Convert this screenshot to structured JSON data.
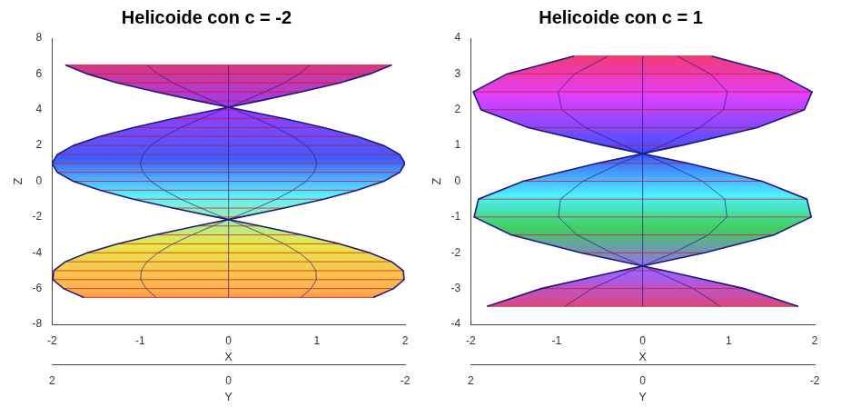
{
  "chart_data": [
    {
      "type": "surface",
      "title": "Helicoide con c = -2",
      "x_label": "X",
      "y_label": "Y",
      "z_label": "Z",
      "xlim": [
        -2,
        2
      ],
      "xticks": [
        -2,
        -1,
        0,
        1,
        2
      ],
      "ylim": [
        -2,
        2
      ],
      "yticks": [
        -2,
        0,
        2
      ],
      "zlim": [
        -8,
        8
      ],
      "zticks": [
        -8,
        -6,
        -4,
        -2,
        0,
        2,
        4,
        6,
        8
      ],
      "grid": false,
      "series": [
        {
          "color": "#1a1a80",
          "z": [
            -6.5,
            -6,
            -5.5,
            -5,
            -4.5,
            -4,
            -3.5,
            -3,
            -2.5,
            -2,
            -1.5,
            -1,
            -0.5,
            0,
            0.5,
            1,
            1.5,
            2,
            2.5,
            3,
            3.5,
            4,
            4.5,
            5,
            5.5,
            6,
            6.5
          ],
          "x": [
            -1.64,
            -1.87,
            -1.99,
            -1.98,
            -1.85,
            -1.6,
            -1.26,
            -0.83,
            -0.36,
            0.14,
            0.63,
            1.08,
            1.46,
            1.76,
            1.94,
            2,
            1.94,
            1.76,
            1.46,
            1.08,
            0.63,
            0.14,
            -0.36,
            -0.83,
            -1.26,
            -1.6,
            -1.85
          ]
        },
        {
          "color": "#1a1a80",
          "z": [
            -6.5,
            -6,
            -5.5,
            -5,
            -4.5,
            -4,
            -3.5,
            -3,
            -2.5,
            -2,
            -1.5,
            -1,
            -0.5,
            0,
            0.5,
            1,
            1.5,
            2,
            2.5,
            3,
            3.5,
            4,
            4.5,
            5,
            5.5,
            6,
            6.5
          ],
          "x": [
            1.64,
            1.87,
            1.99,
            1.98,
            1.85,
            1.6,
            1.26,
            0.83,
            0.36,
            -0.14,
            -0.63,
            -1.08,
            -1.46,
            -1.76,
            -1.94,
            -2,
            -1.94,
            -1.76,
            -1.46,
            -1.08,
            -0.63,
            -0.14,
            0.36,
            0.83,
            1.26,
            1.6,
            1.85
          ]
        }
      ]
    },
    {
      "type": "surface",
      "title": "Helicoide con c = 1",
      "x_label": "X",
      "y_label": "Y",
      "z_label": "Z",
      "xlim": [
        -2,
        2
      ],
      "xticks": [
        -2,
        -1,
        0,
        1,
        2
      ],
      "ylim": [
        -2,
        2
      ],
      "yticks": [
        -2,
        0,
        2
      ],
      "zlim": [
        -4,
        4
      ],
      "zticks": [
        -4,
        -3,
        -2,
        -1,
        0,
        1,
        2,
        3,
        4
      ],
      "grid": false,
      "series": [
        {
          "color": "#1a1a80",
          "z": [
            -3.5,
            -3,
            -2.5,
            -2,
            -1.5,
            -1,
            -0.5,
            0,
            0.5,
            1,
            1.5,
            2,
            2.5,
            3,
            3.5
          ],
          "x": [
            -1.81,
            -1.18,
            -0.26,
            0.72,
            1.53,
            1.96,
            1.91,
            1.39,
            0.53,
            -0.45,
            -1.33,
            -1.88,
            -1.97,
            -1.58,
            -0.8
          ]
        },
        {
          "color": "#1a1a80",
          "z": [
            -3.5,
            -3,
            -2.5,
            -2,
            -1.5,
            -1,
            -0.5,
            0,
            0.5,
            1,
            1.5,
            2,
            2.5,
            3,
            3.5
          ],
          "x": [
            1.81,
            1.18,
            0.26,
            -0.72,
            -1.53,
            -1.96,
            -1.91,
            -1.39,
            -0.53,
            0.45,
            1.33,
            1.88,
            1.97,
            1.58,
            0.8
          ]
        }
      ]
    }
  ]
}
